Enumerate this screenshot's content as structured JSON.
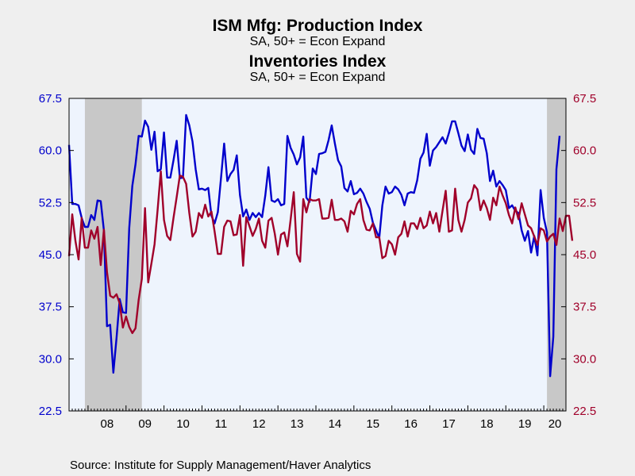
{
  "chart_data": {
    "type": "line",
    "titles": [
      {
        "title": "ISM Mfg: Production Index",
        "subtitle": "SA, 50+ = Econ Expand",
        "color": "#0000cc"
      },
      {
        "title": "Inventories Index",
        "subtitle": "SA, 50+ = Econ Expand",
        "color": "#a0002a"
      }
    ],
    "source": "Source:  Institute for Supply Management/Haver Analytics",
    "ylim": [
      22.5,
      67.5
    ],
    "y_ticks": [
      "67.5",
      "60.0",
      "52.5",
      "45.0",
      "37.5",
      "30.0",
      "22.5"
    ],
    "y_tick_values": [
      67.5,
      60.0,
      52.5,
      45.0,
      37.5,
      30.0,
      22.5
    ],
    "x_range": [
      "2007-07",
      "2020-08"
    ],
    "x_ticks": [
      "08",
      "09",
      "10",
      "11",
      "12",
      "13",
      "14",
      "15",
      "16",
      "17",
      "18",
      "19",
      "20"
    ],
    "grid": false,
    "recession_shading": [
      {
        "start": "2007-12",
        "end": "2009-06",
        "color": "#c8c8c8"
      },
      {
        "start": "2020-02",
        "end": "2020-08",
        "color": "#c8c8c8"
      }
    ],
    "plot_background": "#eef4fd",
    "series": [
      {
        "name": "ISM Mfg: Production Index",
        "color": "#0000cc",
        "start": "2007-07",
        "values": [
          60.8,
          52.3,
          52.3,
          52.1,
          50.3,
          49.0,
          49.0,
          50.7,
          50.0,
          52.8,
          52.7,
          48.5,
          34.7,
          34.9,
          28.0,
          33.0,
          38.6,
          36.7,
          36.6,
          48.8,
          54.9,
          58.0,
          62.1,
          62.0,
          64.3,
          63.4,
          60.1,
          62.7,
          57.0,
          57.3,
          62.6,
          56.1,
          56.1,
          58.6,
          61.4,
          56.0,
          56.1,
          65.1,
          63.6,
          61.3,
          57.3,
          54.4,
          54.5,
          54.3,
          54.6,
          50.6,
          49.5,
          51.1,
          56.0,
          61.0,
          55.6,
          56.6,
          57.2,
          59.3,
          53.6,
          50.5,
          51.5,
          50.0,
          51.0,
          50.4,
          51.0,
          50.4,
          53.5,
          57.6,
          52.8,
          52.6,
          53.0,
          52.1,
          52.3,
          62.1,
          60.4,
          59.4,
          58.0,
          59.0,
          62.0,
          53.2,
          52.6,
          57.4,
          56.6,
          59.5,
          59.6,
          59.8,
          61.5,
          63.6,
          61.0,
          58.6,
          57.7,
          54.6,
          54.1,
          55.6,
          53.7,
          53.9,
          54.5,
          53.8,
          52.6,
          51.6,
          49.6,
          48.5,
          47.4,
          52.1,
          54.8,
          53.8,
          54.0,
          54.8,
          54.4,
          53.6,
          52.1,
          53.8,
          54.0,
          53.9,
          55.7,
          58.8,
          59.7,
          62.4,
          57.8,
          60.0,
          60.5,
          61.2,
          61.9,
          61.0,
          62.5,
          64.2,
          64.2,
          62.5,
          60.7,
          59.9,
          62.3,
          60.1,
          59.5,
          63.1,
          61.8,
          61.7,
          59.6,
          55.6,
          57.1,
          54.8,
          55.6,
          55.0,
          54.3,
          51.7,
          52.1,
          51.3,
          51.0,
          48.5,
          47.0,
          48.4,
          45.3,
          47.7,
          44.9,
          54.3,
          50.3,
          48.2,
          27.5,
          33.2,
          57.3,
          62.1
        ]
      },
      {
        "name": "Inventories Index",
        "color": "#a0002a",
        "start": "2007-07",
        "values": [
          44.8,
          50.8,
          47.0,
          44.3,
          50.3,
          46.0,
          46.0,
          48.5,
          47.3,
          49.0,
          43.5,
          48.6,
          42.5,
          39.1,
          38.8,
          39.3,
          38.0,
          34.5,
          36.1,
          34.6,
          33.7,
          34.4,
          38.5,
          41.5,
          51.7,
          41.0,
          43.7,
          46.5,
          51.5,
          57.0,
          50.0,
          47.7,
          47.1,
          50.3,
          53.3,
          56.4,
          56.2,
          55.2,
          51.0,
          47.6,
          48.3,
          51.0,
          50.3,
          52.2,
          50.5,
          51.2,
          48.3,
          45.1,
          45.1,
          49.0,
          49.9,
          49.8,
          47.8,
          47.9,
          50.7,
          43.4,
          50.4,
          49.1,
          47.7,
          48.7,
          50.2,
          47.0,
          46.0,
          49.9,
          50.3,
          48.0,
          45.0,
          47.9,
          48.2,
          46.2,
          50.0,
          54.0,
          45.1,
          44.0,
          53.0,
          51.1,
          53.0,
          52.8,
          52.8,
          53.0,
          50.2,
          50.2,
          50.3,
          52.9,
          50.0,
          50.0,
          50.2,
          49.8,
          48.3,
          51.3,
          50.8,
          52.3,
          53.0,
          50.0,
          48.6,
          48.5,
          49.5,
          47.5,
          47.5,
          44.5,
          44.8,
          47.0,
          46.5,
          45.0,
          47.5,
          48.0,
          49.8,
          47.6,
          49.5,
          49.5,
          48.7,
          50.3,
          48.8,
          49.2,
          51.2,
          49.5,
          51.0,
          48.3,
          51.3,
          54.2,
          48.3,
          48.5,
          54.5,
          50.0,
          48.3,
          50.0,
          52.5,
          53.1,
          55.0,
          54.4,
          51.4,
          52.8,
          51.7,
          50.0,
          53.2,
          52.1,
          54.8,
          53.5,
          52.4,
          50.7,
          49.5,
          51.8,
          50.1,
          52.4,
          50.8,
          49.2,
          48.8,
          47.6,
          46.4,
          48.8,
          48.5,
          46.9,
          47.6,
          48.0,
          46.4,
          50.2,
          48.4,
          50.6,
          50.6,
          47.0
        ]
      }
    ]
  }
}
